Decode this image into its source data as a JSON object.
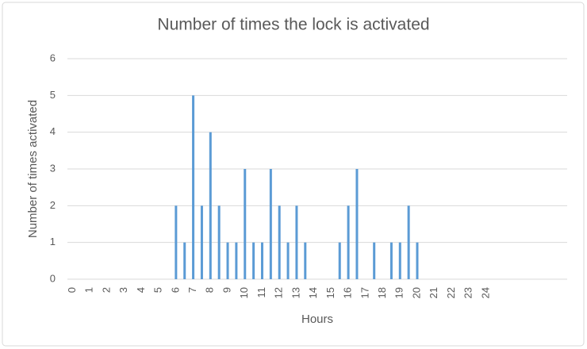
{
  "chart_data": {
    "type": "bar",
    "title": "Number of times the lock is activated",
    "x_label": "Hours",
    "y_label": "Number of times activated",
    "x": [
      6,
      6.5,
      7,
      7.5,
      8,
      8.5,
      9,
      9.5,
      10,
      10.5,
      11,
      11.5,
      12,
      12.5,
      13,
      13.5,
      15.5,
      16,
      16.5,
      17.5,
      18.5,
      19,
      19.5,
      20
    ],
    "values": [
      2,
      1,
      5,
      2,
      4,
      2,
      1,
      1,
      3,
      1,
      1,
      3,
      2,
      1,
      2,
      1,
      1,
      2,
      3,
      1,
      1,
      1,
      2,
      1
    ],
    "color": "#5b9bd5",
    "xlim": [
      -0.3,
      28.7
    ],
    "xticks": [
      0,
      1,
      2,
      3,
      4,
      5,
      6,
      7,
      8,
      9,
      10,
      11,
      12,
      13,
      14,
      15,
      16,
      17,
      18,
      19,
      20,
      21,
      22,
      23,
      24
    ],
    "ylim": [
      0,
      6
    ],
    "yticks": [
      0,
      1,
      2,
      3,
      4,
      5,
      6
    ],
    "grid": true
  }
}
